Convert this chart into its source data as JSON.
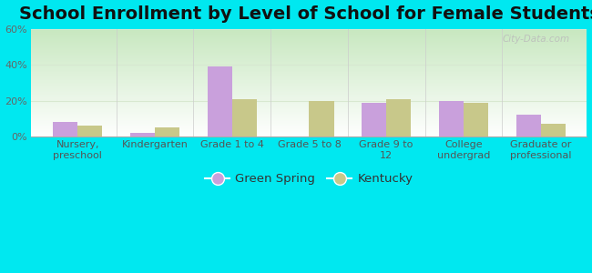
{
  "title": "School Enrollment by Level of School for Female Students",
  "categories": [
    "Nursery,\npreschool",
    "Kindergarten",
    "Grade 1 to 4",
    "Grade 5 to 8",
    "Grade 9 to\n12",
    "College\nundergrad",
    "Graduate or\nprofessional"
  ],
  "green_spring": [
    8,
    2,
    39,
    0,
    19,
    20,
    12
  ],
  "kentucky": [
    6,
    5,
    21,
    20,
    21,
    19,
    7
  ],
  "green_spring_color": "#c9a0dc",
  "kentucky_color": "#c8c88a",
  "background_outer": "#00e8f0",
  "ylim": [
    0,
    60
  ],
  "yticks": [
    0,
    20,
    40,
    60
  ],
  "ytick_labels": [
    "0%",
    "20%",
    "40%",
    "60%"
  ],
  "grid_color": "#d8e8d0",
  "bar_width": 0.32,
  "legend_label_gs": "Green Spring",
  "legend_label_ky": "Kentucky",
  "title_fontsize": 14,
  "tick_fontsize": 8,
  "legend_fontsize": 9.5,
  "plot_bg_top": "#c8e8c0",
  "plot_bg_bottom": "#f0f8f0"
}
